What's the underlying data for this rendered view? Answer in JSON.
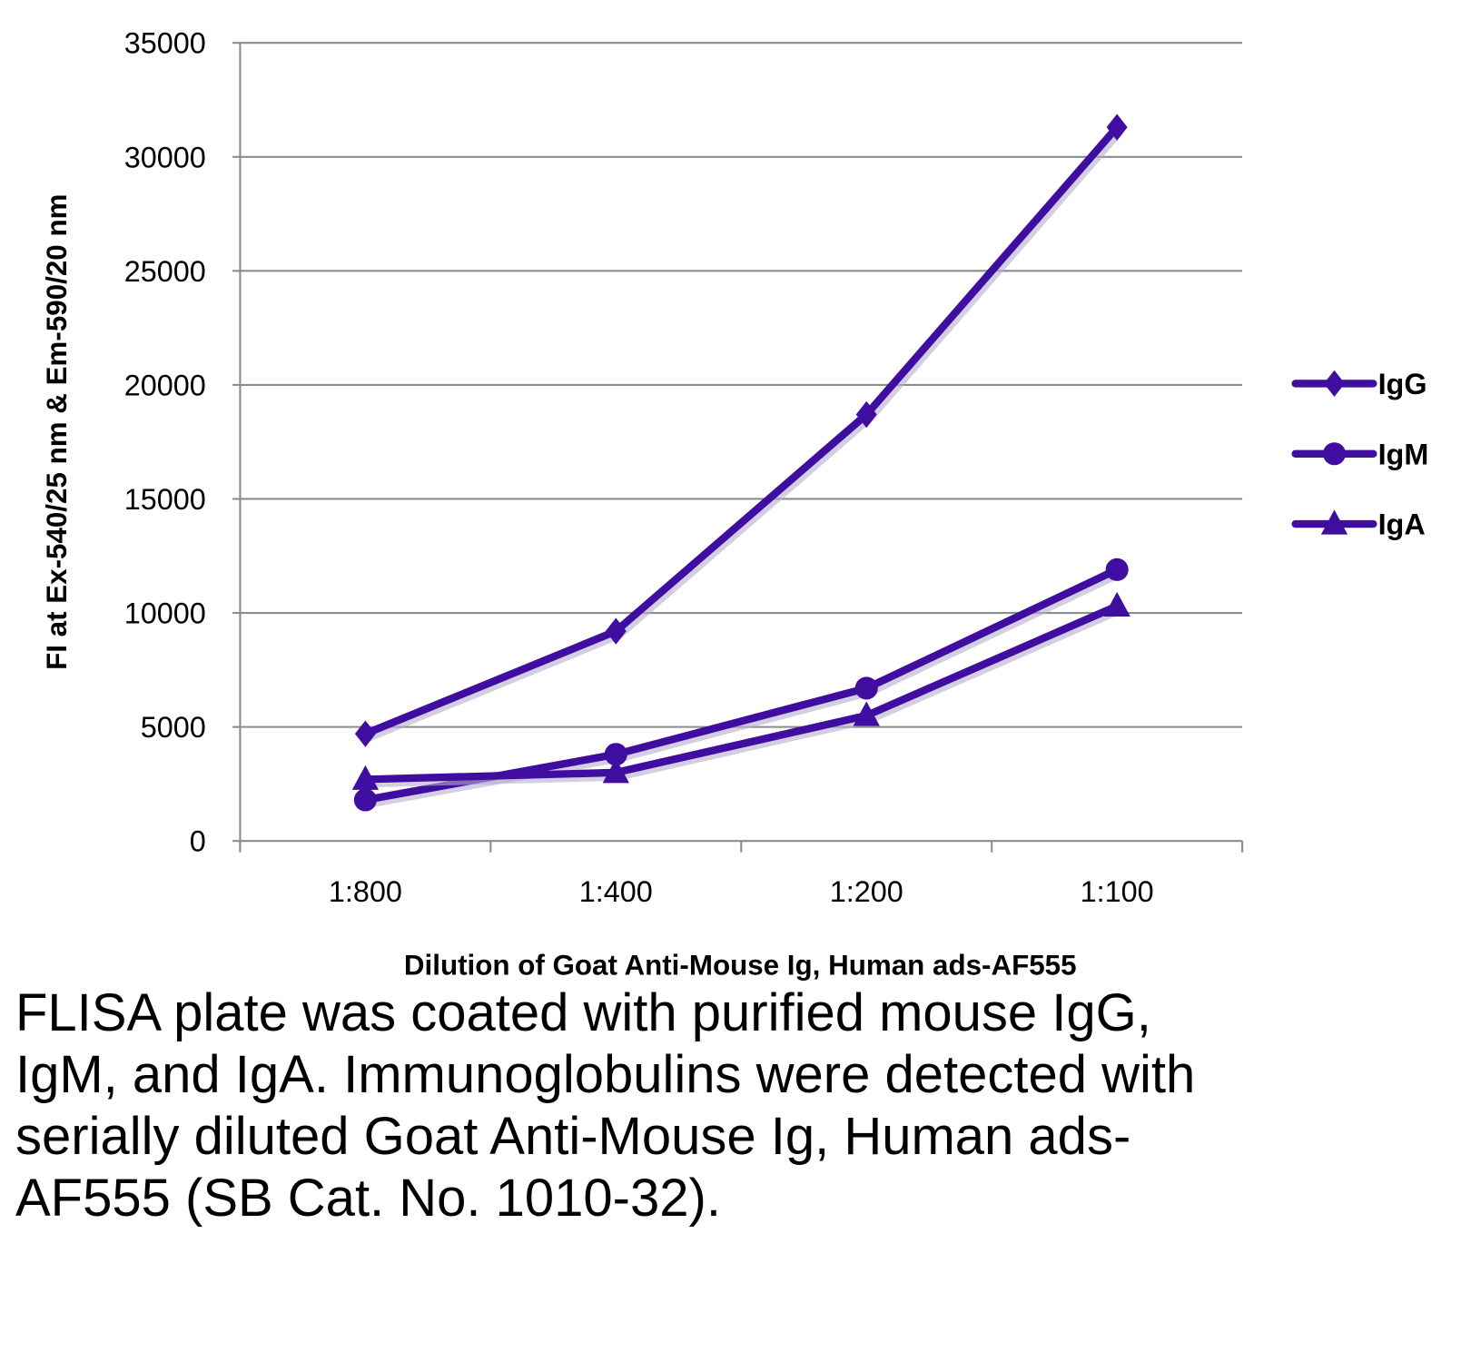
{
  "chart_data": {
    "type": "line",
    "title": "",
    "xlabel": "Dilution of Goat Anti-Mouse Ig, Human ads-AF555",
    "ylabel": "FI at Ex-540/25 nm & Em-590/20 nm",
    "categories": [
      "1:800",
      "1:400",
      "1:200",
      "1:100"
    ],
    "ylim": [
      0,
      35000
    ],
    "yticks": [
      0,
      5000,
      10000,
      15000,
      20000,
      25000,
      30000,
      35000
    ],
    "grid": true,
    "legend_position": "right",
    "series": [
      {
        "name": "IgG",
        "marker": "diamond",
        "color": "#3f0ea0",
        "values": [
          4700,
          9200,
          18700,
          31300
        ]
      },
      {
        "name": "IgM",
        "marker": "circle",
        "color": "#3f0ea0",
        "values": [
          1800,
          3800,
          6700,
          11900
        ]
      },
      {
        "name": "IgA",
        "marker": "triangle",
        "color": "#3f0ea0",
        "values": [
          2700,
          3000,
          5500,
          10300
        ]
      }
    ]
  },
  "caption": "FLISA plate was coated with purified mouse IgG, IgM, and IgA.  Immunoglobulins were detected with serially diluted Goat Anti-Mouse Ig, Human ads-AF555 (SB Cat. No. 1010-32)."
}
